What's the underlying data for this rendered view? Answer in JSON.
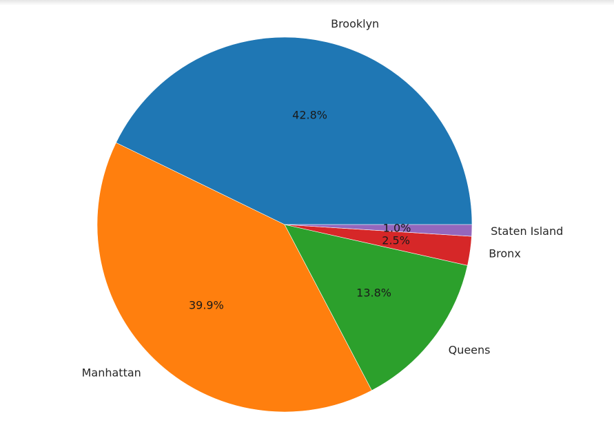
{
  "chart_data": {
    "type": "pie",
    "labels": [
      "Brooklyn",
      "Manhattan",
      "Queens",
      "Bronx",
      "Staten Island"
    ],
    "values": [
      42.8,
      39.9,
      13.8,
      2.5,
      1.0
    ],
    "percent_labels": [
      "42.8%",
      "39.9%",
      "13.8%",
      "2.5%",
      "1.0%"
    ],
    "colors": [
      "#1f77b4",
      "#ff7f0e",
      "#2ca02c",
      "#d62728",
      "#9467bd"
    ],
    "start_angle_deg": 0,
    "direction": "counterclockwise",
    "title": ""
  }
}
